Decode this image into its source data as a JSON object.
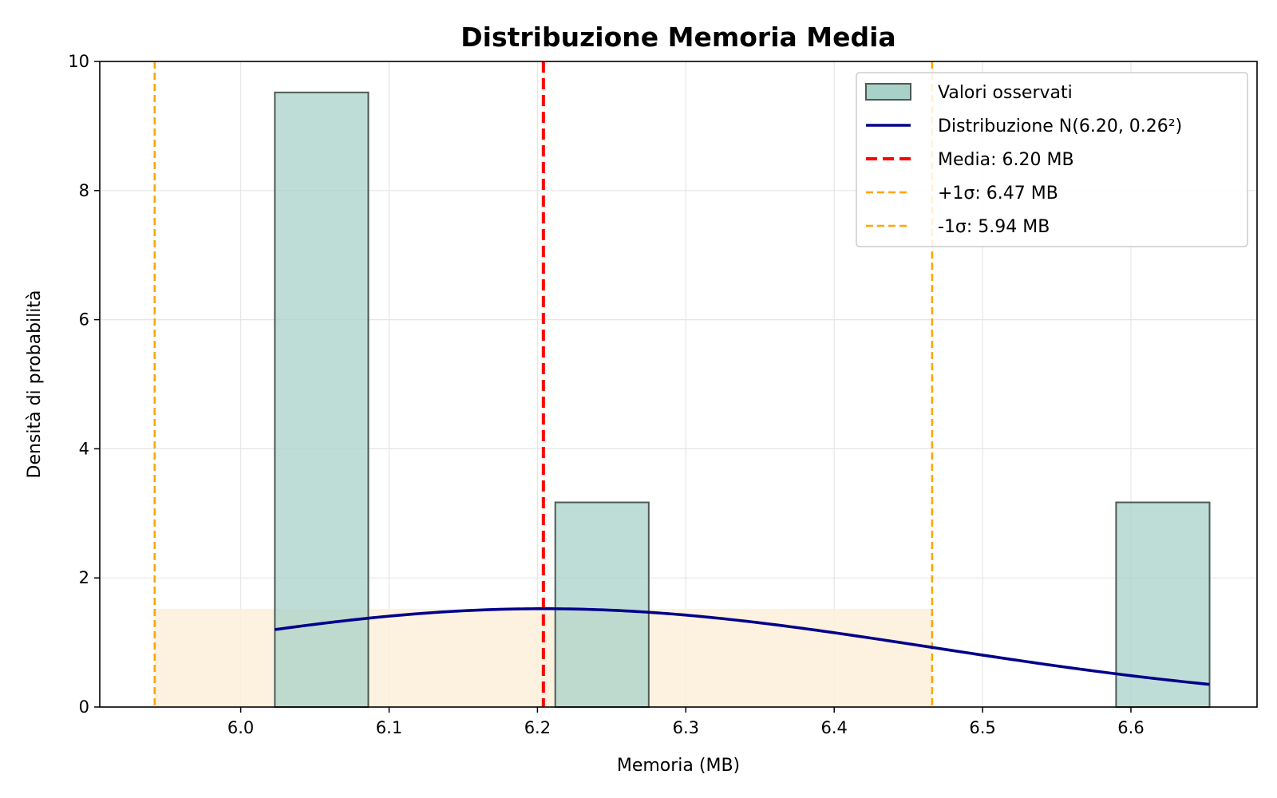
{
  "chart_data": {
    "type": "histogram",
    "title": "Distribuzione Memoria Media",
    "xlabel": "Memoria (MB)",
    "ylabel": "Densità di probabilità",
    "xlim": [
      5.905,
      6.685
    ],
    "ylim": [
      0,
      10
    ],
    "xticks": [
      6.0,
      6.1,
      6.2,
      6.3,
      6.4,
      6.5,
      6.6
    ],
    "yticks": [
      0,
      2,
      4,
      6,
      8,
      10
    ],
    "grid": true,
    "legend_position": "top-right",
    "bars": [
      {
        "x0": 6.023,
        "x1": 6.086,
        "density": 9.52
      },
      {
        "x0": 6.086,
        "x1": 6.149,
        "density": 0
      },
      {
        "x0": 6.149,
        "x1": 6.212,
        "density": 0
      },
      {
        "x0": 6.212,
        "x1": 6.275,
        "density": 3.17
      },
      {
        "x0": 6.275,
        "x1": 6.338,
        "density": 0
      },
      {
        "x0": 6.338,
        "x1": 6.401,
        "density": 0
      },
      {
        "x0": 6.401,
        "x1": 6.464,
        "density": 0
      },
      {
        "x0": 6.464,
        "x1": 6.527,
        "density": 0
      },
      {
        "x0": 6.527,
        "x1": 6.59,
        "density": 0
      },
      {
        "x0": 6.59,
        "x1": 6.653,
        "density": 3.17
      }
    ],
    "normal": {
      "mean": 6.204,
      "std": 0.262,
      "x_start": 6.023,
      "x_end": 6.653
    },
    "mean_line": 6.204,
    "plus_sigma": 6.466,
    "minus_sigma": 5.942,
    "sigma_band": {
      "x0": 5.942,
      "x1": 6.466,
      "y1": 1.52
    },
    "legend": [
      {
        "label": "Valori osservati",
        "kind": "patch"
      },
      {
        "label": "Distribuzione N(6.20, 0.26²)",
        "kind": "line"
      },
      {
        "label": "Media: 6.20 MB",
        "kind": "dashed-red"
      },
      {
        "label": "+1σ: 6.47 MB",
        "kind": "dashed-orange"
      },
      {
        "label": "-1σ: 5.94 MB",
        "kind": "dashed-orange"
      }
    ],
    "colors": {
      "bar_fill": "#a8d2c8",
      "bar_edge": "#4d5a56",
      "curve": "#00008b",
      "mean": "#ff0000",
      "sigma": "#ffa500",
      "band": "#fdefd9",
      "grid": "#e6e6e6"
    }
  }
}
